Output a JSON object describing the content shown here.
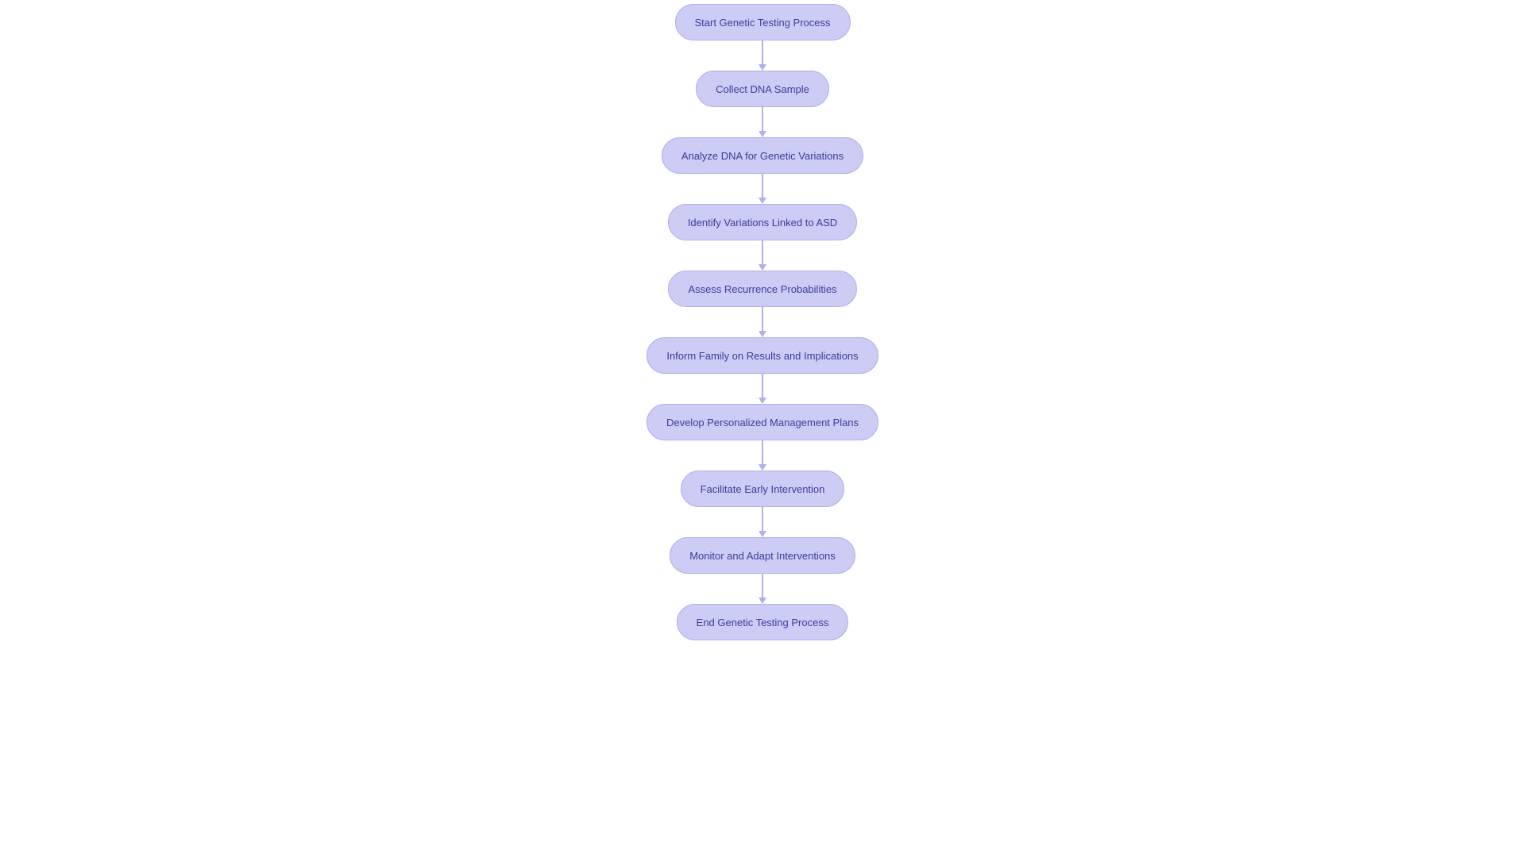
{
  "flowchart": {
    "type": "flowchart",
    "background_color": "#ffffff",
    "node_fill": "#ccccf4",
    "node_border": "#b0b0ea",
    "node_text_color": "#3b3b9f",
    "node_fontsize": 13,
    "node_border_radius": 999,
    "node_padding_y": 14,
    "node_padding_x": 24,
    "node_min_height": 46,
    "connector_color": "#b0b0ea",
    "connector_height": 38,
    "connector_line_width": 1.5,
    "arrow_width": 10,
    "arrow_height": 8,
    "nodes": [
      {
        "id": "start",
        "label": "Start Genetic Testing Process"
      },
      {
        "id": "collect",
        "label": "Collect DNA Sample"
      },
      {
        "id": "analyze",
        "label": "Analyze DNA for Genetic Variations"
      },
      {
        "id": "identify",
        "label": "Identify Variations Linked to ASD"
      },
      {
        "id": "assess",
        "label": "Assess Recurrence Probabilities"
      },
      {
        "id": "inform",
        "label": "Inform Family on Results and Implications"
      },
      {
        "id": "develop",
        "label": "Develop Personalized Management Plans"
      },
      {
        "id": "facilitate",
        "label": "Facilitate Early Intervention"
      },
      {
        "id": "monitor",
        "label": "Monitor and Adapt Interventions"
      },
      {
        "id": "end",
        "label": "End Genetic Testing Process"
      }
    ],
    "edges": [
      {
        "from": "start",
        "to": "collect"
      },
      {
        "from": "collect",
        "to": "analyze"
      },
      {
        "from": "analyze",
        "to": "identify"
      },
      {
        "from": "identify",
        "to": "assess"
      },
      {
        "from": "assess",
        "to": "inform"
      },
      {
        "from": "inform",
        "to": "develop"
      },
      {
        "from": "develop",
        "to": "facilitate"
      },
      {
        "from": "facilitate",
        "to": "monitor"
      },
      {
        "from": "monitor",
        "to": "end"
      }
    ]
  }
}
